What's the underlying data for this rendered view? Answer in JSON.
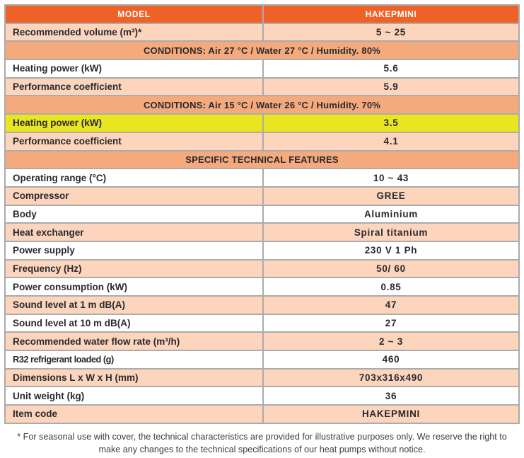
{
  "colors": {
    "header_orange": "#EE6228",
    "peach": "#FCD5BC",
    "salmon": "#F5AA7D",
    "highlight_yellow": "#E9E61F",
    "border_gray": "#ABABAB",
    "text_dark": "#2A2930"
  },
  "table": {
    "header": {
      "model_label": "MODEL",
      "product_name": "HAKEPMINI"
    },
    "rows": [
      {
        "type": "data",
        "label": "Recommended volume (m³)*",
        "value": "5 ~ 25",
        "bg": "peach"
      },
      {
        "type": "section",
        "label": "CONDITIONS: Air 27 °C / Water 27 °C / Humidity. 80%"
      },
      {
        "type": "data",
        "label": "Heating power (kW)",
        "value": "5.6",
        "bg": "white"
      },
      {
        "type": "data",
        "label": "Performance coefficient",
        "value": "5.9",
        "bg": "peach"
      },
      {
        "type": "section",
        "label": "CONDITIONS: Air 15 °C / Water 26 °C / Humidity. 70%"
      },
      {
        "type": "data",
        "label": "Heating power (kW)",
        "value": "3.5",
        "bg": "yellow"
      },
      {
        "type": "data",
        "label": "Performance coefficient",
        "value": "4.1",
        "bg": "peach"
      },
      {
        "type": "section",
        "label": "SPECIFIC TECHNICAL FEATURES"
      },
      {
        "type": "data",
        "label": "Operating range (°C)",
        "value": "10 ~ 43",
        "bg": "white"
      },
      {
        "type": "data",
        "label": "Compressor",
        "value": "GREE",
        "bg": "peach"
      },
      {
        "type": "data",
        "label": "Body",
        "value": "Aluminium",
        "bg": "white"
      },
      {
        "type": "data",
        "label": "Heat exchanger",
        "value": "Spiral titanium",
        "bg": "peach"
      },
      {
        "type": "data",
        "label": "Power supply",
        "value": "230 V 1 Ph",
        "bg": "white"
      },
      {
        "type": "data",
        "label": "Frequency (Hz)",
        "value": "50/ 60",
        "bg": "peach"
      },
      {
        "type": "data",
        "label": "Power consumption (kW)",
        "value": "0.85",
        "bg": "white"
      },
      {
        "type": "data",
        "label": "Sound level at 1 m dB(A)",
        "value": "47",
        "bg": "peach"
      },
      {
        "type": "data",
        "label": "Sound level at 10 m dB(A)",
        "value": "27",
        "bg": "white"
      },
      {
        "type": "data",
        "label": "Recommended water flow rate (m³/h)",
        "value": "2 ~ 3",
        "bg": "peach"
      },
      {
        "type": "data",
        "label": "R32 refrigerant loaded (g)",
        "value": "460",
        "bg": "white",
        "condensed": true
      },
      {
        "type": "data",
        "label": "Dimensions L x W x H (mm)",
        "value": "703x316x490",
        "bg": "peach"
      },
      {
        "type": "data",
        "label": "Unit weight (kg)",
        "value": "36",
        "bg": "white"
      },
      {
        "type": "data",
        "label": "Item code",
        "value": "HAKEPMINI",
        "bg": "peach"
      }
    ]
  },
  "footnote": "* For seasonal use with cover, the technical characteristics are provided for illustrative purposes only. We reserve the right to make any changes to the technical specifications of our heat pumps without notice."
}
